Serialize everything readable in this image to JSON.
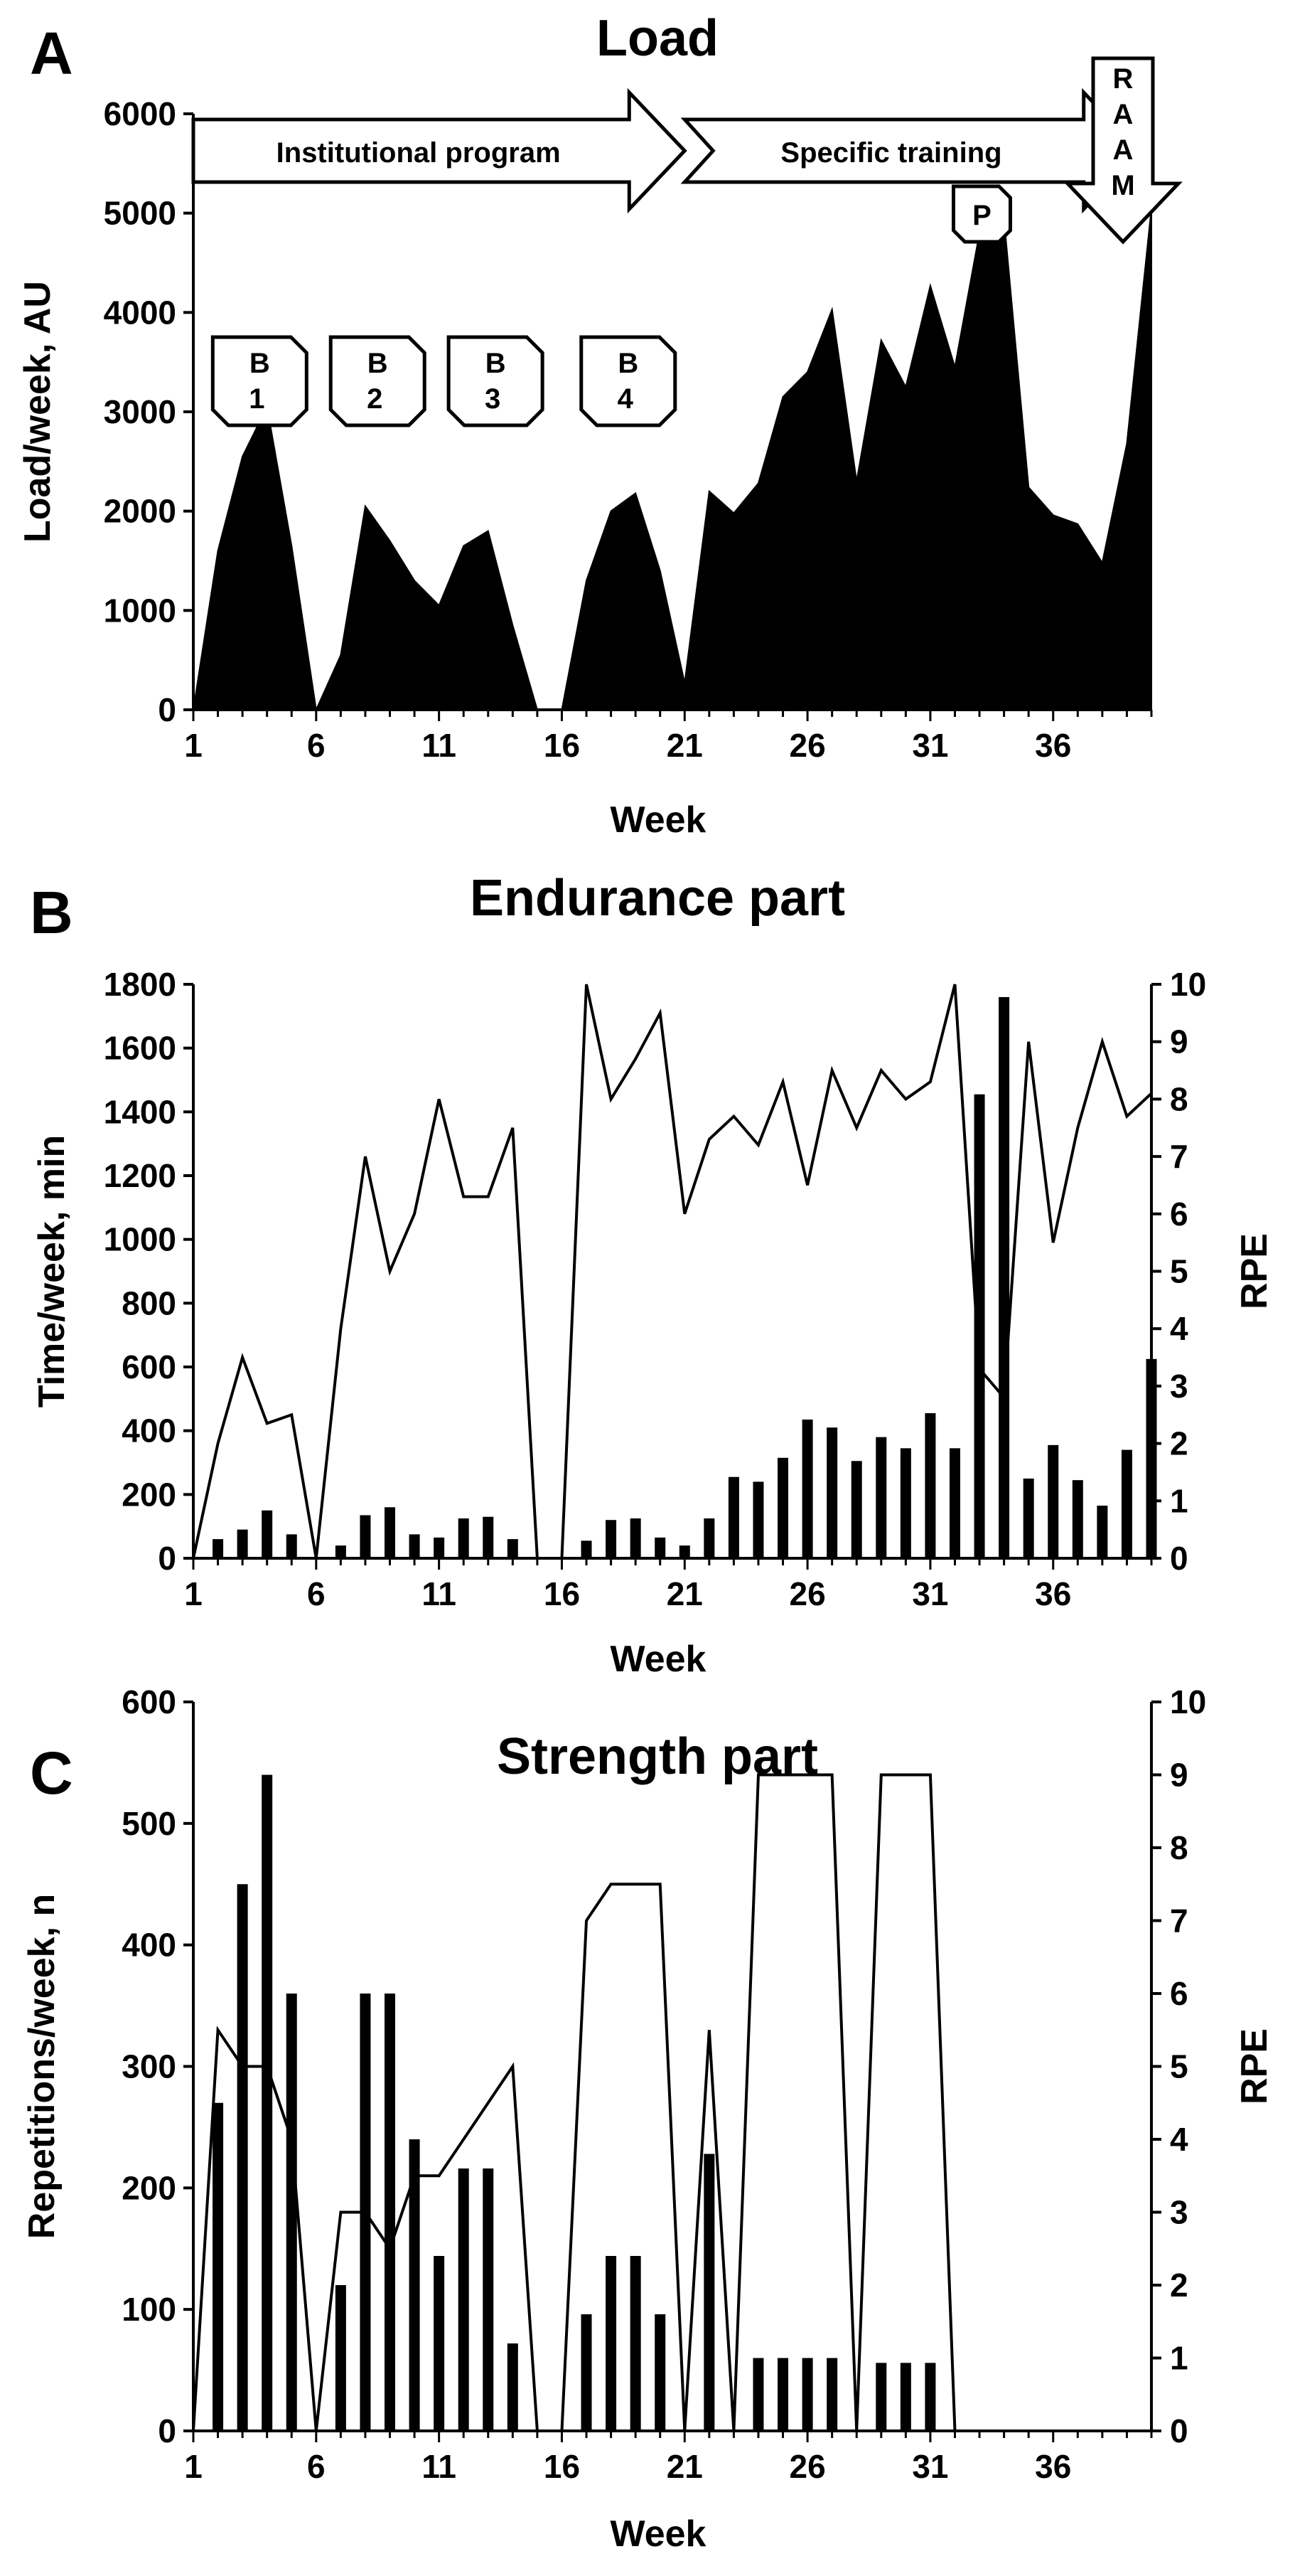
{
  "chart_data": [
    {
      "panel": "A",
      "type": "area",
      "title": "Load",
      "xlabel": "Week",
      "ylabel": "Load/week, AU",
      "xlim": [
        1,
        40
      ],
      "ylim": [
        0,
        6000
      ],
      "xticks": [
        "1",
        "6",
        "11",
        "16",
        "21",
        "26",
        "31",
        "36"
      ],
      "yticks": [
        "0",
        "1000",
        "2000",
        "3000",
        "4000",
        "5000",
        "6000"
      ],
      "x": [
        1,
        2,
        3,
        4,
        5,
        6,
        7,
        8,
        9,
        10,
        11,
        12,
        13,
        14,
        15,
        16,
        17,
        18,
        19,
        20,
        21,
        22,
        23,
        24,
        25,
        26,
        27,
        28,
        29,
        30,
        31,
        32,
        33,
        34,
        35,
        36,
        37,
        38,
        39,
        40
      ],
      "values": [
        0,
        1600,
        2550,
        3050,
        1650,
        0,
        550,
        2050,
        1700,
        1300,
        1050,
        1650,
        1800,
        850,
        0,
        0,
        1300,
        2000,
        2180,
        1400,
        270,
        2200,
        1980,
        2280,
        3150,
        3400,
        4030,
        2300,
        3720,
        3250,
        4270,
        3450,
        4800,
        4940,
        2240,
        1960,
        1870,
        1480,
        2680,
        5050
      ],
      "phases": [
        {
          "label": "Institutional program",
          "from": 1,
          "to": 21
        },
        {
          "label": "Specific training",
          "from": 21,
          "to": 39.5
        }
      ],
      "event_label": "RAAM",
      "event_letters": [
        "R",
        "A",
        "A",
        "M"
      ],
      "block_labels": [
        {
          "top": "B",
          "bottom": "1",
          "week": 3.7
        },
        {
          "top": "B",
          "bottom": "2",
          "week": 8.5
        },
        {
          "top": "B",
          "bottom": "3",
          "week": 13.3
        },
        {
          "top": "B",
          "bottom": "4",
          "week": 18.7
        }
      ],
      "p_marker": {
        "label": "P",
        "week": 33.1
      }
    },
    {
      "panel": "B",
      "type": "bar+line",
      "title": "Endurance part",
      "xlabel": "Week",
      "ylabel": "Time/week, min",
      "y2label": "RPE",
      "xlim": [
        1,
        40
      ],
      "ylim": [
        0,
        1800
      ],
      "y2lim": [
        0,
        10
      ],
      "xticks": [
        "1",
        "6",
        "11",
        "16",
        "21",
        "26",
        "31",
        "36"
      ],
      "yticks": [
        "0",
        "200",
        "400",
        "600",
        "800",
        "1000",
        "1200",
        "1400",
        "1600",
        "1800"
      ],
      "y2ticks": [
        "0",
        "1",
        "2",
        "3",
        "4",
        "5",
        "6",
        "7",
        "8",
        "9",
        "10"
      ],
      "x": [
        1,
        2,
        3,
        4,
        5,
        6,
        7,
        8,
        9,
        10,
        11,
        12,
        13,
        14,
        15,
        16,
        17,
        18,
        19,
        20,
        21,
        22,
        23,
        24,
        25,
        26,
        27,
        28,
        29,
        30,
        31,
        32,
        33,
        34,
        35,
        36,
        37,
        38,
        39,
        40
      ],
      "series": [
        {
          "name": "Time/week, min",
          "kind": "bar",
          "axis": "left",
          "values": [
            0,
            60,
            90,
            150,
            75,
            0,
            40,
            135,
            160,
            75,
            65,
            125,
            130,
            60,
            0,
            0,
            55,
            120,
            125,
            65,
            40,
            125,
            255,
            240,
            315,
            435,
            410,
            305,
            380,
            345,
            455,
            345,
            1455,
            1760,
            250,
            355,
            245,
            165,
            340,
            625
          ]
        },
        {
          "name": "RPE",
          "kind": "line",
          "axis": "right",
          "values": [
            0,
            2,
            3.5,
            2.35,
            2.5,
            0,
            4,
            7,
            5,
            6,
            8,
            6.3,
            6.3,
            7.5,
            0,
            0,
            10,
            8,
            8.7,
            9.5,
            6,
            7.3,
            7.7,
            7.2,
            8.3,
            6.5,
            8.5,
            7.5,
            8.5,
            8,
            8.3,
            10,
            3.3,
            2.8,
            9,
            5.5,
            7.5,
            9,
            7.7,
            8.1
          ]
        }
      ]
    },
    {
      "panel": "C",
      "type": "bar+line",
      "title": "Strength part",
      "xlabel": "Week",
      "ylabel": "Repetitions/week, n",
      "y2label": "RPE",
      "xlim": [
        1,
        40
      ],
      "ylim": [
        0,
        600
      ],
      "y2lim": [
        0,
        10
      ],
      "xticks": [
        "1",
        "6",
        "11",
        "16",
        "21",
        "26",
        "31",
        "36"
      ],
      "yticks": [
        "0",
        "100",
        "200",
        "300",
        "400",
        "500",
        "600"
      ],
      "y2ticks": [
        "0",
        "1",
        "2",
        "3",
        "4",
        "5",
        "6",
        "7",
        "8",
        "9",
        "10"
      ],
      "x": [
        1,
        2,
        3,
        4,
        5,
        6,
        7,
        8,
        9,
        10,
        11,
        12,
        13,
        14,
        15,
        16,
        17,
        18,
        19,
        20,
        21,
        22,
        23,
        24,
        25,
        26,
        27,
        28,
        29,
        30,
        31,
        32,
        33,
        34,
        35,
        36,
        37,
        38,
        39,
        40
      ],
      "series": [
        {
          "name": "Repetitions/week, n",
          "kind": "bar",
          "axis": "left",
          "values": [
            0,
            270,
            450,
            540,
            360,
            0,
            120,
            360,
            360,
            240,
            144,
            216,
            216,
            72,
            0,
            0,
            96,
            144,
            144,
            96,
            0,
            228,
            0,
            60,
            60,
            60,
            60,
            0,
            56,
            56,
            56,
            0,
            0,
            0,
            0,
            0,
            0,
            0,
            0,
            0
          ]
        },
        {
          "name": "RPE",
          "kind": "line",
          "axis": "right",
          "values": [
            0,
            5.5,
            5,
            5,
            4,
            0,
            3,
            3,
            2.5,
            3.5,
            3.5,
            4,
            4.5,
            5,
            0,
            0,
            7,
            7.5,
            7.5,
            7.5,
            0,
            5.5,
            0,
            9,
            9,
            9,
            9,
            0,
            9,
            9,
            9,
            0,
            0,
            0,
            0,
            0,
            0,
            0,
            0,
            0
          ]
        }
      ]
    }
  ]
}
